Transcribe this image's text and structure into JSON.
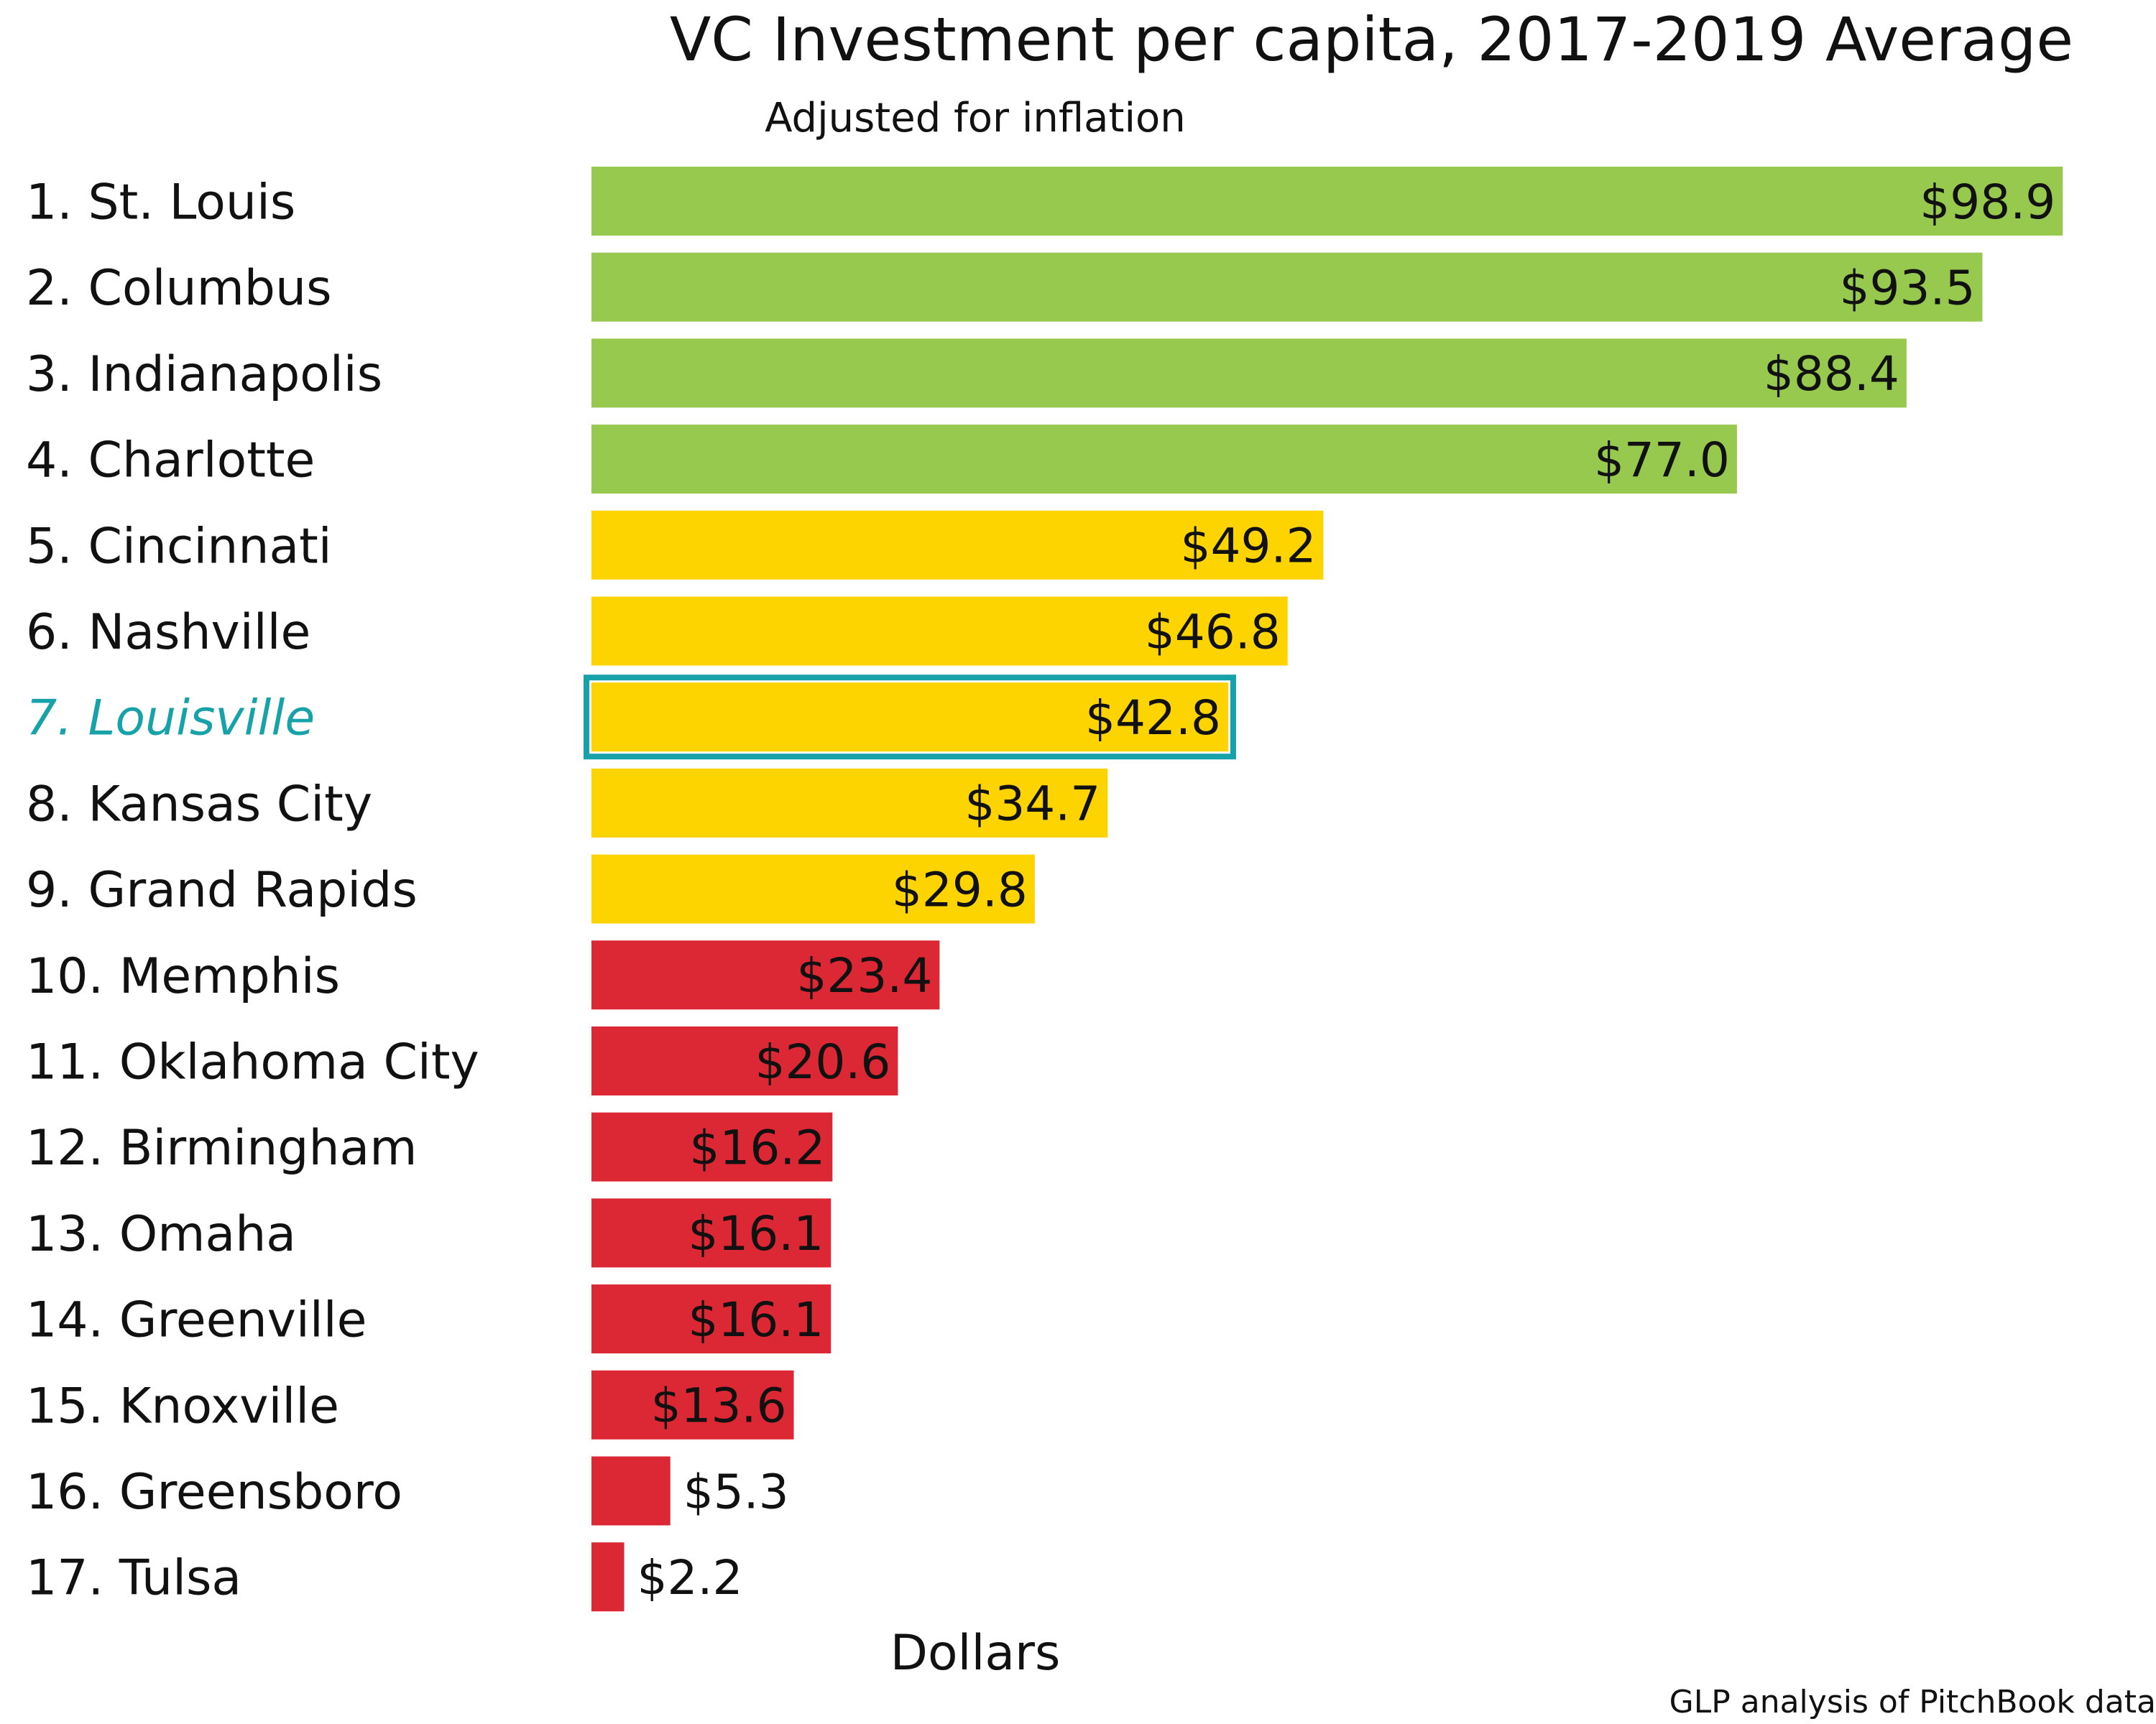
{
  "chart_data": {
    "type": "bar",
    "orientation": "horizontal",
    "title": "VC Investment per capita, 2017-2019 Average",
    "subtitle": "Adjusted for inflation",
    "xlabel": "Dollars",
    "ylabel": "",
    "source": "GLP analysis of PitchBook data",
    "xlim": [
      0,
      100
    ],
    "grid": false,
    "legend": "none",
    "highlight_category": "7. Louisville",
    "categories": [
      "1. St. Louis",
      "2. Columbus",
      "3. Indianapolis",
      "4. Charlotte",
      "5. Cincinnati",
      "6. Nashville",
      "7. Louisville",
      "8. Kansas City",
      "9. Grand Rapids",
      "10. Memphis",
      "11. Oklahoma City",
      "12. Birmingham",
      "13. Omaha",
      "14. Greenville",
      "15. Knoxville",
      "16. Greensboro",
      "17. Tulsa"
    ],
    "values": [
      98.9,
      93.5,
      88.4,
      77.0,
      49.2,
      46.8,
      42.8,
      34.7,
      29.8,
      23.4,
      20.6,
      16.2,
      16.1,
      16.1,
      13.6,
      5.3,
      2.2
    ],
    "value_labels": [
      "$98.9",
      "$93.5",
      "$88.4",
      "$77.0",
      "$49.2",
      "$46.8",
      "$42.8",
      "$34.7",
      "$29.8",
      "$23.4",
      "$20.6",
      "$16.2",
      "$16.1",
      "$16.1",
      "$13.6",
      "$5.3",
      "$2.2"
    ],
    "tiers": [
      "top",
      "top",
      "top",
      "top",
      "middle",
      "middle",
      "middle",
      "middle",
      "middle",
      "bottom",
      "bottom",
      "bottom",
      "bottom",
      "bottom",
      "bottom",
      "bottom",
      "bottom"
    ],
    "colors": {
      "top": "#96c94e",
      "middle": "#fdd300",
      "bottom": "#dc2834",
      "highlight": "#17a2a9",
      "text": "#111111"
    }
  }
}
